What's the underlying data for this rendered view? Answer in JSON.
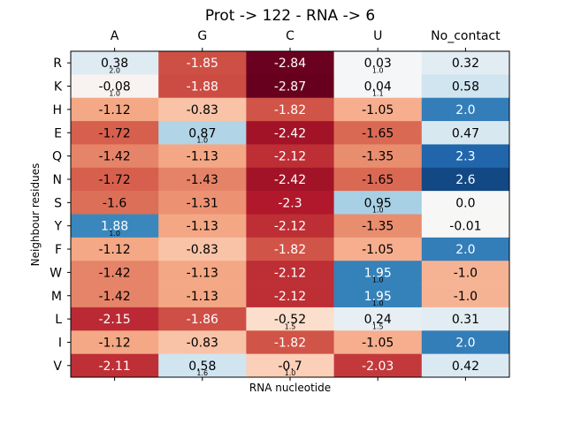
{
  "chart_data": {
    "type": "heatmap",
    "title": "Prot -> 122 - RNA -> 6",
    "xlabel": "RNA nucleotide",
    "ylabel": "Neighbour residues",
    "columns": [
      "A",
      "G",
      "C",
      "U",
      "No_contact"
    ],
    "rows": [
      "R",
      "K",
      "H",
      "E",
      "Q",
      "N",
      "S",
      "Y",
      "F",
      "W",
      "M",
      "L",
      "I",
      "V"
    ],
    "values": [
      [
        0.38,
        -1.85,
        -2.84,
        0.03,
        0.32
      ],
      [
        -0.08,
        -1.88,
        -2.87,
        0.04,
        0.58
      ],
      [
        -1.12,
        -0.83,
        -1.82,
        -1.05,
        2.0
      ],
      [
        -1.72,
        0.87,
        -2.42,
        -1.65,
        0.47
      ],
      [
        -1.42,
        -1.13,
        -2.12,
        -1.35,
        2.3
      ],
      [
        -1.72,
        -1.43,
        -2.42,
        -1.65,
        2.6
      ],
      [
        -1.6,
        -1.31,
        -2.3,
        0.95,
        0.0
      ],
      [
        1.88,
        -1.13,
        -2.12,
        -1.35,
        -0.01
      ],
      [
        -1.12,
        -0.83,
        -1.82,
        -1.05,
        2.0
      ],
      [
        -1.42,
        -1.13,
        -2.12,
        1.95,
        -1.0
      ],
      [
        -1.42,
        -1.13,
        -2.12,
        1.95,
        -1.0
      ],
      [
        -2.15,
        -1.86,
        -0.52,
        0.24,
        0.31
      ],
      [
        -1.12,
        -0.83,
        -1.82,
        -1.05,
        2.0
      ],
      [
        -2.11,
        0.58,
        -0.7,
        -2.03,
        0.42
      ]
    ],
    "labels": [
      [
        "0.38",
        "-1.85",
        "-2.84",
        "0.03",
        "0.32"
      ],
      [
        "-0.08",
        "-1.88",
        "-2.87",
        "0.04",
        "0.58"
      ],
      [
        "-1.12",
        "-0.83",
        "-1.82",
        "-1.05",
        "2.0"
      ],
      [
        "-1.72",
        "0.87",
        "-2.42",
        "-1.65",
        "0.47"
      ],
      [
        "-1.42",
        "-1.13",
        "-2.12",
        "-1.35",
        "2.3"
      ],
      [
        "-1.72",
        "-1.43",
        "-2.42",
        "-1.65",
        "2.6"
      ],
      [
        "-1.6",
        "-1.31",
        "-2.3",
        "0.95",
        "0.0"
      ],
      [
        "1.88",
        "-1.13",
        "-2.12",
        "-1.35",
        "-0.01"
      ],
      [
        "-1.12",
        "-0.83",
        "-1.82",
        "-1.05",
        "2.0"
      ],
      [
        "-1.42",
        "-1.13",
        "-2.12",
        "1.95",
        "-1.0"
      ],
      [
        "-1.42",
        "-1.13",
        "-2.12",
        "1.95",
        "-1.0"
      ],
      [
        "-2.15",
        "-1.86",
        "-0.52",
        "0.24",
        "0.31"
      ],
      [
        "-1.12",
        "-0.83",
        "-1.82",
        "-1.05",
        "2.0"
      ],
      [
        "-2.11",
        "0.58",
        "-0.7",
        "-2.03",
        "0.42"
      ]
    ],
    "annotations": [
      {
        "row": 0,
        "col": 0,
        "text": "2.0"
      },
      {
        "row": 0,
        "col": 3,
        "text": "1.0"
      },
      {
        "row": 1,
        "col": 0,
        "text": "1.0"
      },
      {
        "row": 1,
        "col": 3,
        "text": "1.1"
      },
      {
        "row": 3,
        "col": 1,
        "text": "1.0"
      },
      {
        "row": 6,
        "col": 3,
        "text": "1.0"
      },
      {
        "row": 7,
        "col": 0,
        "text": "1.0"
      },
      {
        "row": 9,
        "col": 3,
        "text": "1.0"
      },
      {
        "row": 10,
        "col": 3,
        "text": "1.0"
      },
      {
        "row": 11,
        "col": 2,
        "text": "1.5"
      },
      {
        "row": 11,
        "col": 3,
        "text": "1.5"
      },
      {
        "row": 13,
        "col": 1,
        "text": "1.6"
      },
      {
        "row": 13,
        "col": 2,
        "text": "1.0"
      }
    ],
    "colormap": "RdBu",
    "vmin": -2.87,
    "vmax": 2.87,
    "x_ticks_position": "top"
  }
}
